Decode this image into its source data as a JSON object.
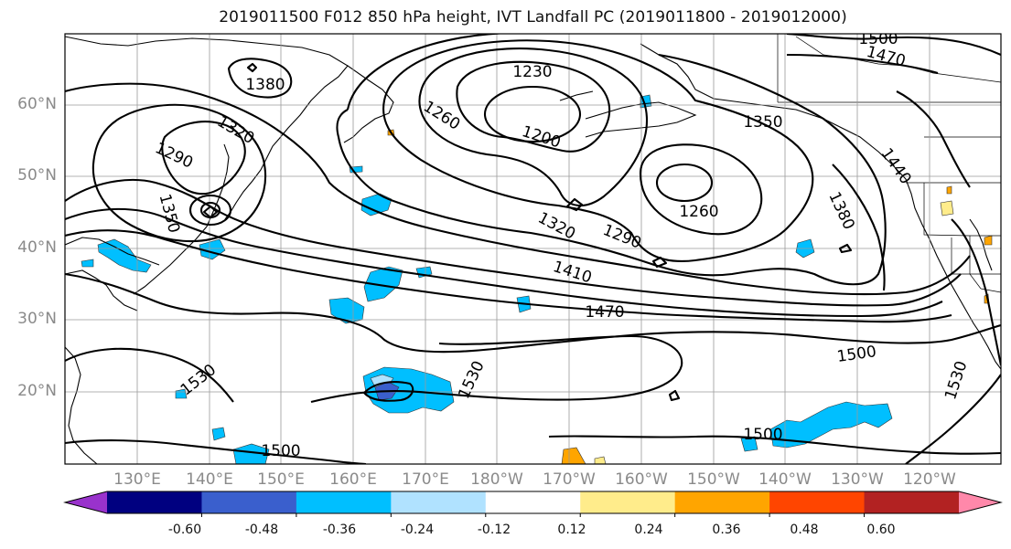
{
  "title": "2019011500 F012 850 hPa height, IVT Landfall PC (2019011800 - 2019012000)",
  "lat_ticks": [
    "60°N",
    "50°N",
    "40°N",
    "30°N",
    "20°N"
  ],
  "lon_ticks": [
    "130°E",
    "140°E",
    "150°E",
    "160°E",
    "170°E",
    "180°W",
    "170°W",
    "160°W",
    "150°W",
    "140°W",
    "130°W",
    "120°W"
  ],
  "contour_labels": [
    "1380",
    "1320",
    "1290",
    "1350",
    "1260",
    "1230",
    "1200",
    "1350",
    "1470",
    "1440",
    "1260",
    "1320",
    "1290",
    "1410",
    "1380",
    "1470",
    "1500",
    "1530",
    "1530",
    "1530",
    "1500",
    "1500",
    "1500"
  ],
  "colorbar": {
    "labels": [
      "-0.60",
      "-0.48",
      "-0.36",
      "-0.24",
      "-0.12",
      "0.12",
      "0.24",
      "0.36",
      "0.48",
      "0.60"
    ],
    "colors": [
      "#9932cc",
      "#000080",
      "#3a5fcd",
      "#00bfff",
      "#b0e2ff",
      "#ffffff",
      "#ffec8b",
      "#ffa500",
      "#ff4500",
      "#b22222",
      "#ff88aa"
    ]
  }
}
